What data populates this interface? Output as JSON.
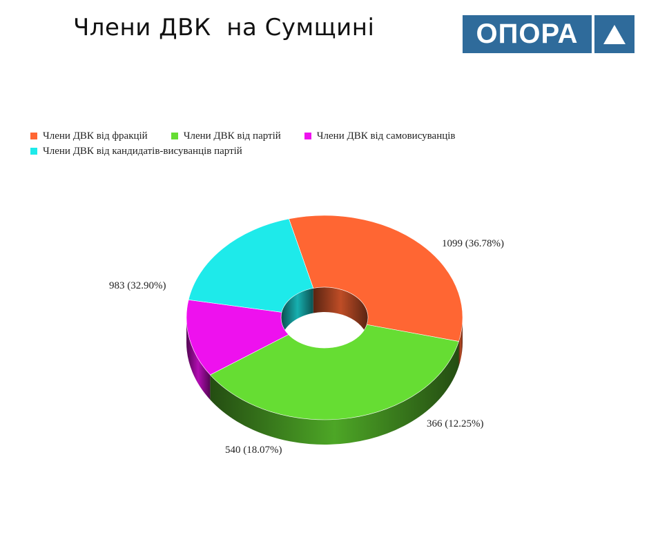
{
  "title": "Члени ДВК  на Сумщині",
  "logo": {
    "text": "ОПОРА",
    "icon": "triangle-icon",
    "color": "#2f6b9b"
  },
  "chart_data": {
    "type": "pie",
    "style": "3d-donut",
    "legend_position": "top-left",
    "categories": [
      "Члени ДВК від фракцій",
      "Члени ДВК від партій",
      "Члени ДВК від самовисуванців",
      "Члени ДВК від кандидатів-висуванців партій"
    ],
    "values": [
      983,
      1099,
      366,
      540
    ],
    "percents": [
      32.9,
      36.78,
      12.25,
      18.07
    ],
    "labels": [
      "983 (32.90%)",
      "1099 (36.78%)",
      "366 (12.25%)",
      "540 (18.07%)"
    ],
    "colors": [
      "#ff6633",
      "#66dd33",
      "#ee11ee",
      "#1eeaea"
    ]
  }
}
